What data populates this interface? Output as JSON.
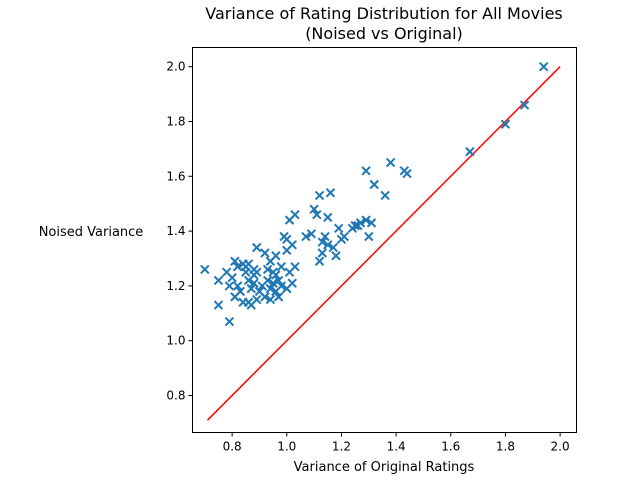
{
  "chart_data": {
    "type": "scatter",
    "title_lines": [
      "Variance of Rating Distribution for All Movies",
      "(Noised vs Original)"
    ],
    "xlabel": "Variance of Original Ratings",
    "ylabel": "Noised Variance",
    "xlim": [
      0.655,
      2.06
    ],
    "ylim": [
      0.665,
      2.07
    ],
    "xticks": [
      0.8,
      1.0,
      1.2,
      1.4,
      1.6,
      1.8,
      2.0
    ],
    "xtick_labels": [
      "0.8",
      "1.0",
      "1.2",
      "1.4",
      "1.6",
      "1.8",
      "2.0"
    ],
    "yticks": [
      0.8,
      1.0,
      1.2,
      1.4,
      1.6,
      1.8,
      2.0
    ],
    "ytick_labels": [
      "0.8",
      "1.0",
      "1.2",
      "1.4",
      "1.6",
      "1.8",
      "2.0"
    ],
    "marker": "x",
    "colors": {
      "points": "#1f77b4",
      "reference_line": "#ff0000"
    },
    "reference_line": {
      "x": [
        0.71,
        2.0
      ],
      "y": [
        0.71,
        2.0
      ]
    },
    "points": [
      [
        0.7,
        1.26
      ],
      [
        0.75,
        1.22
      ],
      [
        0.75,
        1.13
      ],
      [
        0.79,
        1.07
      ],
      [
        0.78,
        1.25
      ],
      [
        0.79,
        1.2
      ],
      [
        0.8,
        1.23
      ],
      [
        0.81,
        1.16
      ],
      [
        0.81,
        1.29
      ],
      [
        0.82,
        1.27
      ],
      [
        0.82,
        1.2
      ],
      [
        0.83,
        1.18
      ],
      [
        0.84,
        1.14
      ],
      [
        0.84,
        1.28
      ],
      [
        0.85,
        1.25
      ],
      [
        0.85,
        1.27
      ],
      [
        0.86,
        1.14
      ],
      [
        0.86,
        1.22
      ],
      [
        0.86,
        1.28
      ],
      [
        0.87,
        1.13
      ],
      [
        0.87,
        1.19
      ],
      [
        0.88,
        1.21
      ],
      [
        0.88,
        1.24
      ],
      [
        0.88,
        1.26
      ],
      [
        0.89,
        1.25
      ],
      [
        0.89,
        1.15
      ],
      [
        0.89,
        1.34
      ],
      [
        0.9,
        1.18
      ],
      [
        0.91,
        1.2
      ],
      [
        0.92,
        1.32
      ],
      [
        0.92,
        1.16
      ],
      [
        0.93,
        1.26
      ],
      [
        0.93,
        1.22
      ],
      [
        0.94,
        1.29
      ],
      [
        0.94,
        1.15
      ],
      [
        0.94,
        1.19
      ],
      [
        0.95,
        1.25
      ],
      [
        0.95,
        1.21
      ],
      [
        0.96,
        1.18
      ],
      [
        0.96,
        1.24
      ],
      [
        0.96,
        1.31
      ],
      [
        0.97,
        1.16
      ],
      [
        0.97,
        1.22
      ],
      [
        0.98,
        1.2
      ],
      [
        0.98,
        1.27
      ],
      [
        0.99,
        1.38
      ],
      [
        1.0,
        1.37
      ],
      [
        1.0,
        1.33
      ],
      [
        1.0,
        1.19
      ],
      [
        1.01,
        1.44
      ],
      [
        1.01,
        1.25
      ],
      [
        1.02,
        1.35
      ],
      [
        1.02,
        1.21
      ],
      [
        1.03,
        1.46
      ],
      [
        1.03,
        1.27
      ],
      [
        1.07,
        1.38
      ],
      [
        1.09,
        1.39
      ],
      [
        1.1,
        1.48
      ],
      [
        1.11,
        1.46
      ],
      [
        1.12,
        1.53
      ],
      [
        1.12,
        1.29
      ],
      [
        1.13,
        1.36
      ],
      [
        1.13,
        1.32
      ],
      [
        1.14,
        1.38
      ],
      [
        1.15,
        1.45
      ],
      [
        1.15,
        1.35
      ],
      [
        1.16,
        1.54
      ],
      [
        1.17,
        1.34
      ],
      [
        1.18,
        1.31
      ],
      [
        1.19,
        1.41
      ],
      [
        1.2,
        1.37
      ],
      [
        1.21,
        1.38
      ],
      [
        1.24,
        1.41
      ],
      [
        1.25,
        1.42
      ],
      [
        1.26,
        1.42
      ],
      [
        1.27,
        1.43
      ],
      [
        1.29,
        1.62
      ],
      [
        1.29,
        1.44
      ],
      [
        1.3,
        1.38
      ],
      [
        1.31,
        1.43
      ],
      [
        1.32,
        1.57
      ],
      [
        1.36,
        1.53
      ],
      [
        1.38,
        1.65
      ],
      [
        1.43,
        1.62
      ],
      [
        1.44,
        1.61
      ],
      [
        1.67,
        1.69
      ],
      [
        1.8,
        1.79
      ],
      [
        1.87,
        1.86
      ],
      [
        1.94,
        2.0
      ]
    ]
  }
}
